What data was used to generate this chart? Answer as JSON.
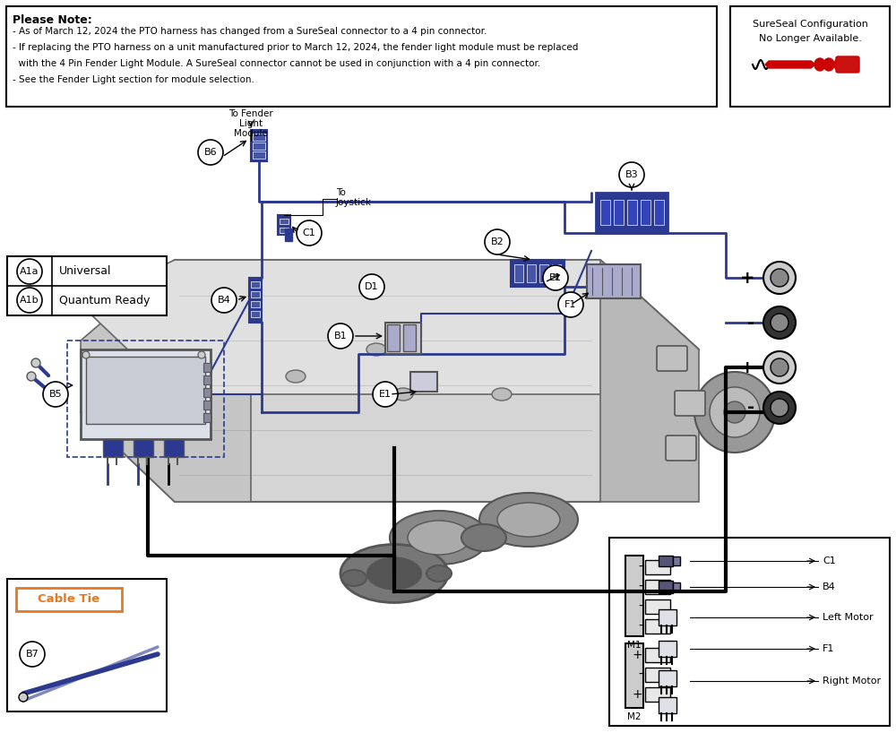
{
  "note_title": "Please Note:",
  "note_lines": [
    "- As of March 12, 2024 the PTO harness has changed from a SureSeal connector to a 4 pin connector.",
    "- If replacing the PTO harness on a unit manufactured prior to March 12, 2024, the fender light module must be replaced",
    "  with the 4 Pin Fender Light Module. A SureSeal connector cannot be used in conjunction with a 4 pin connector.",
    "- See the Fender Light section for module selection."
  ],
  "sureseal_line1": "SureSeal Configuration",
  "sureseal_line2": "No Longer Available.",
  "legend_rows": [
    [
      "A1a",
      "Universal"
    ],
    [
      "A1b",
      "Quantum Ready"
    ]
  ],
  "cable_tie_label": "Cable Tie",
  "cable_tie_color": "#E87722",
  "connector_labels_right": [
    "C1",
    "B4",
    "Left Motor",
    "F1",
    "Right Motor"
  ],
  "bg_color": "#ffffff",
  "blue": "#2b3990",
  "black": "#000000",
  "gray_light": "#cccccc",
  "gray_mid": "#999999",
  "gray_dark": "#555555",
  "red": "#cc0000"
}
